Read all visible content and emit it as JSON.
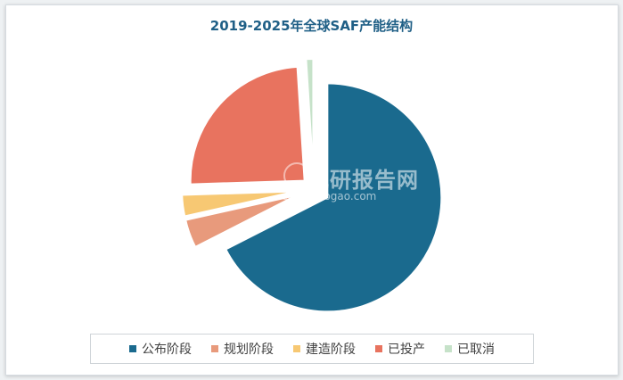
{
  "title": "2019-2025年全球SAF产能结构",
  "watermark": {
    "cn": "观研报告网",
    "en": "chinabaogao.com"
  },
  "chart_data": {
    "type": "pie",
    "exploded": true,
    "categories": [
      "公布阶段",
      "规划阶段",
      "建造阶段",
      "已投产",
      "已取消"
    ],
    "values": [
      67.5,
      4.0,
      3.0,
      24.5,
      1.0
    ],
    "unit": "%",
    "colors": [
      "#1a6a8e",
      "#e89a7c",
      "#f7c873",
      "#e8735f",
      "#c6e2c9"
    ],
    "legend_position": "bottom"
  }
}
